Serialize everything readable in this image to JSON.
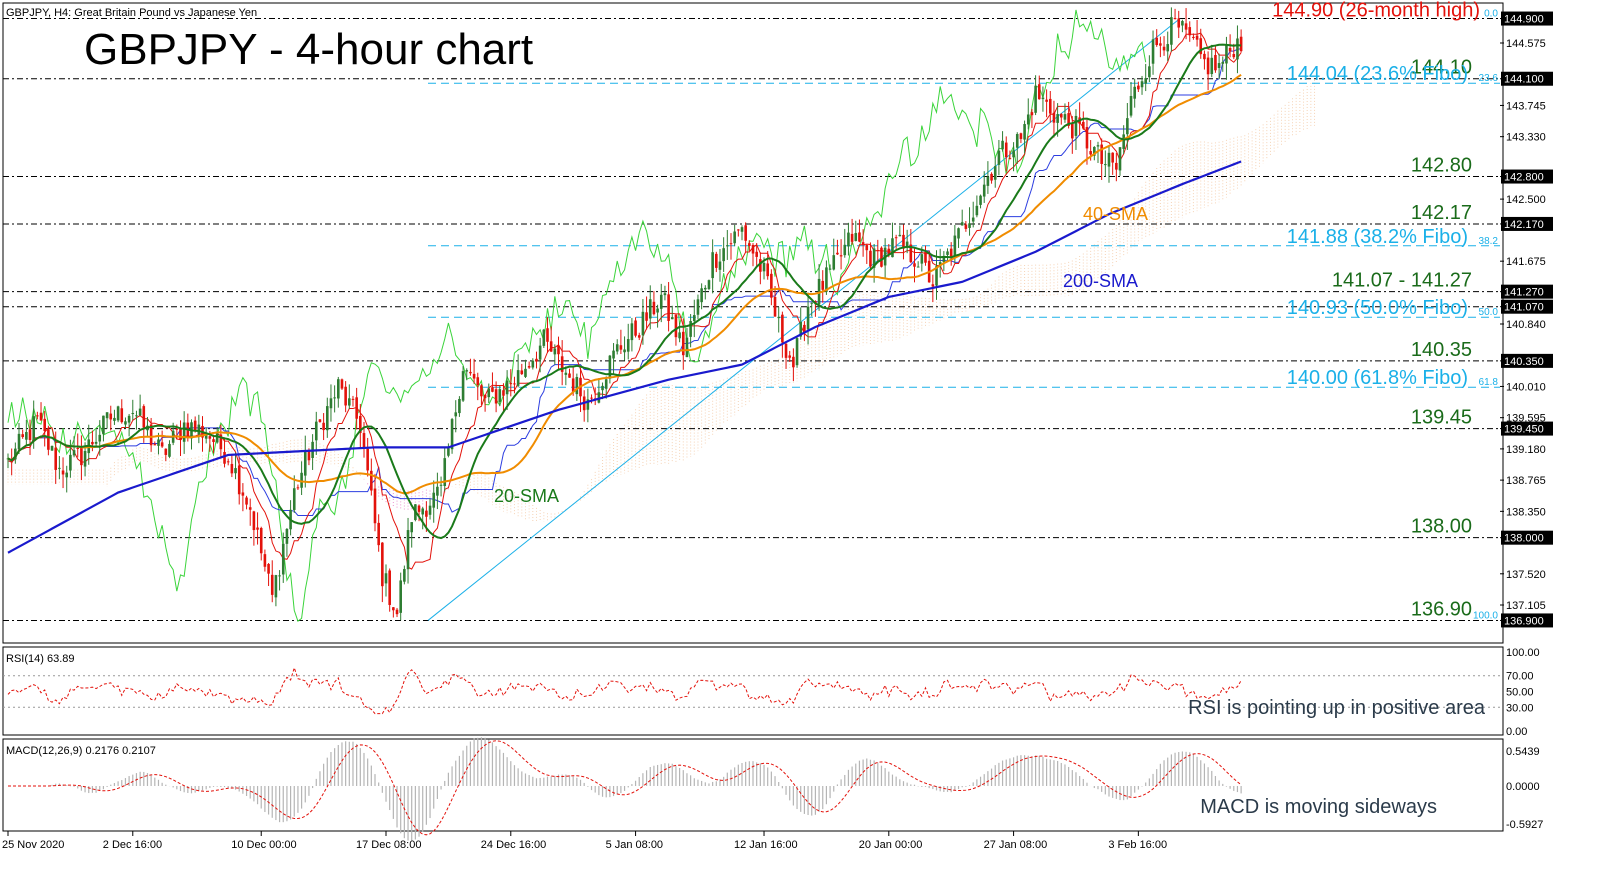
{
  "header": {
    "symbol_info": "GBPJPY, H4:  Great Britain Pound vs Japanese Yen",
    "big_title": "GBPJPY - 4-hour chart"
  },
  "colors": {
    "bull": "#2e7d32",
    "bear": "#e3120b",
    "fibo": "#1ab0e8",
    "sma20": "#1a7a1a",
    "sma40": "#f08c00",
    "sma200": "#1a1acd",
    "support": "#1a6b1a",
    "high": "#e3120b"
  },
  "chart_data": {
    "type": "candlestick",
    "title": "GBPJPY - 4-hour chart",
    "ylim": [
      136.64,
      145.08
    ],
    "x_ticks": [
      "25 Nov 2020",
      "2 Dec 16:00",
      "10 Dec 00:00",
      "17 Dec 08:00",
      "24 Dec 16:00",
      "5 Jan 08:00",
      "12 Jan 16:00",
      "20 Jan 00:00",
      "27 Jan 08:00",
      "3 Feb 16:00"
    ],
    "y_ticks": [
      "144.900",
      "144.575",
      "144.100",
      "143.745",
      "143.330",
      "142.800",
      "142.500",
      "142.170",
      "141.675",
      "141.270",
      "141.070",
      "140.840",
      "140.350",
      "140.010",
      "139.595",
      "139.450",
      "139.180",
      "138.765",
      "138.350",
      "138.000",
      "137.520",
      "137.105",
      "136.900"
    ],
    "levels": [
      {
        "value": 144.9,
        "label": "144.90 (26-month high)",
        "style": "high"
      },
      {
        "value": 144.1,
        "label": "144.10",
        "style": "support"
      },
      {
        "value": 144.04,
        "label": "144.04 (23.6% Fibo)",
        "style": "fibo"
      },
      {
        "value": 142.8,
        "label": "142.80",
        "style": "support"
      },
      {
        "value": 142.17,
        "label": "142.17",
        "style": "support"
      },
      {
        "value": 141.88,
        "label": "141.88 (38.2% Fibo)",
        "style": "fibo"
      },
      {
        "value": 141.27,
        "label": "141.07 - 141.27",
        "style": "support"
      },
      {
        "value": 141.07,
        "label": "",
        "style": "support"
      },
      {
        "value": 140.93,
        "label": "140.93 (50.0% Fibo)",
        "style": "fibo"
      },
      {
        "value": 140.35,
        "label": "140.35",
        "style": "support"
      },
      {
        "value": 140.0,
        "label": "140.00 (61.8% Fibo)",
        "style": "fibo"
      },
      {
        "value": 139.45,
        "label": "139.45",
        "style": "support"
      },
      {
        "value": 138.0,
        "label": "138.00",
        "style": "support"
      },
      {
        "value": 136.9,
        "label": "136.90",
        "style": "support"
      }
    ],
    "fibo_tags": [
      "0.0",
      "23.6",
      "38.2",
      "50.0",
      "61.8",
      "100.0"
    ],
    "close_anchors": [
      [
        0,
        139.0
      ],
      [
        8,
        139.55
      ],
      [
        14,
        138.9
      ],
      [
        20,
        139.1
      ],
      [
        28,
        139.6
      ],
      [
        34,
        139.7
      ],
      [
        42,
        139.1
      ],
      [
        48,
        139.5
      ],
      [
        54,
        139.4
      ],
      [
        60,
        139.1
      ],
      [
        66,
        138.4
      ],
      [
        72,
        137.2
      ],
      [
        78,
        138.6
      ],
      [
        84,
        139.4
      ],
      [
        90,
        140.0
      ],
      [
        96,
        139.5
      ],
      [
        102,
        137.5
      ],
      [
        106,
        137.0
      ],
      [
        110,
        138.3
      ],
      [
        118,
        138.6
      ],
      [
        124,
        140.3
      ],
      [
        130,
        139.8
      ],
      [
        138,
        140.1
      ],
      [
        146,
        140.6
      ],
      [
        152,
        140.2
      ],
      [
        158,
        139.8
      ],
      [
        166,
        140.5
      ],
      [
        172,
        140.8
      ],
      [
        178,
        141.2
      ],
      [
        184,
        140.5
      ],
      [
        192,
        141.7
      ],
      [
        200,
        142.1
      ],
      [
        206,
        141.5
      ],
      [
        210,
        140.8
      ],
      [
        214,
        140.3
      ],
      [
        218,
        141.1
      ],
      [
        224,
        141.5
      ],
      [
        230,
        142.0
      ],
      [
        236,
        141.7
      ],
      [
        242,
        141.9
      ],
      [
        248,
        141.7
      ],
      [
        252,
        141.4
      ],
      [
        258,
        141.9
      ],
      [
        264,
        142.5
      ],
      [
        270,
        143.1
      ],
      [
        276,
        143.3
      ],
      [
        280,
        143.9
      ],
      [
        286,
        143.6
      ],
      [
        292,
        143.4
      ],
      [
        298,
        143.0
      ],
      [
        302,
        142.9
      ],
      [
        306,
        143.8
      ],
      [
        312,
        144.5
      ],
      [
        318,
        144.8
      ],
      [
        322,
        144.6
      ],
      [
        326,
        144.3
      ],
      [
        330,
        144.25
      ],
      [
        334,
        144.55
      ],
      [
        336,
        144.6
      ]
    ],
    "sma_labels": [
      "20-SMA",
      "40-SMA",
      "200-SMA"
    ],
    "sma200_anchors": [
      [
        0,
        137.8
      ],
      [
        30,
        138.6
      ],
      [
        60,
        139.1
      ],
      [
        100,
        139.2
      ],
      [
        120,
        139.2
      ],
      [
        150,
        139.7
      ],
      [
        180,
        140.1
      ],
      [
        200,
        140.3
      ],
      [
        220,
        140.8
      ],
      [
        240,
        141.2
      ],
      [
        260,
        141.4
      ],
      [
        280,
        141.8
      ],
      [
        300,
        142.3
      ],
      [
        320,
        142.7
      ],
      [
        336,
        143.0
      ]
    ],
    "rsi": {
      "label": "RSI(14) 63.89",
      "ylim": [
        0,
        100
      ],
      "ticks": [
        "100.00",
        "70.00",
        "50.00",
        "30.00",
        "0.00"
      ],
      "annotation": "RSI is pointing up in positive area"
    },
    "macd": {
      "label": "MACD(12,26,9) 0.2176 0.2107",
      "ylim": [
        -0.62,
        0.62
      ],
      "ticks": [
        "0.5439",
        "0.0000",
        "-0.5927"
      ],
      "annotation": "MACD is moving sideways"
    }
  }
}
